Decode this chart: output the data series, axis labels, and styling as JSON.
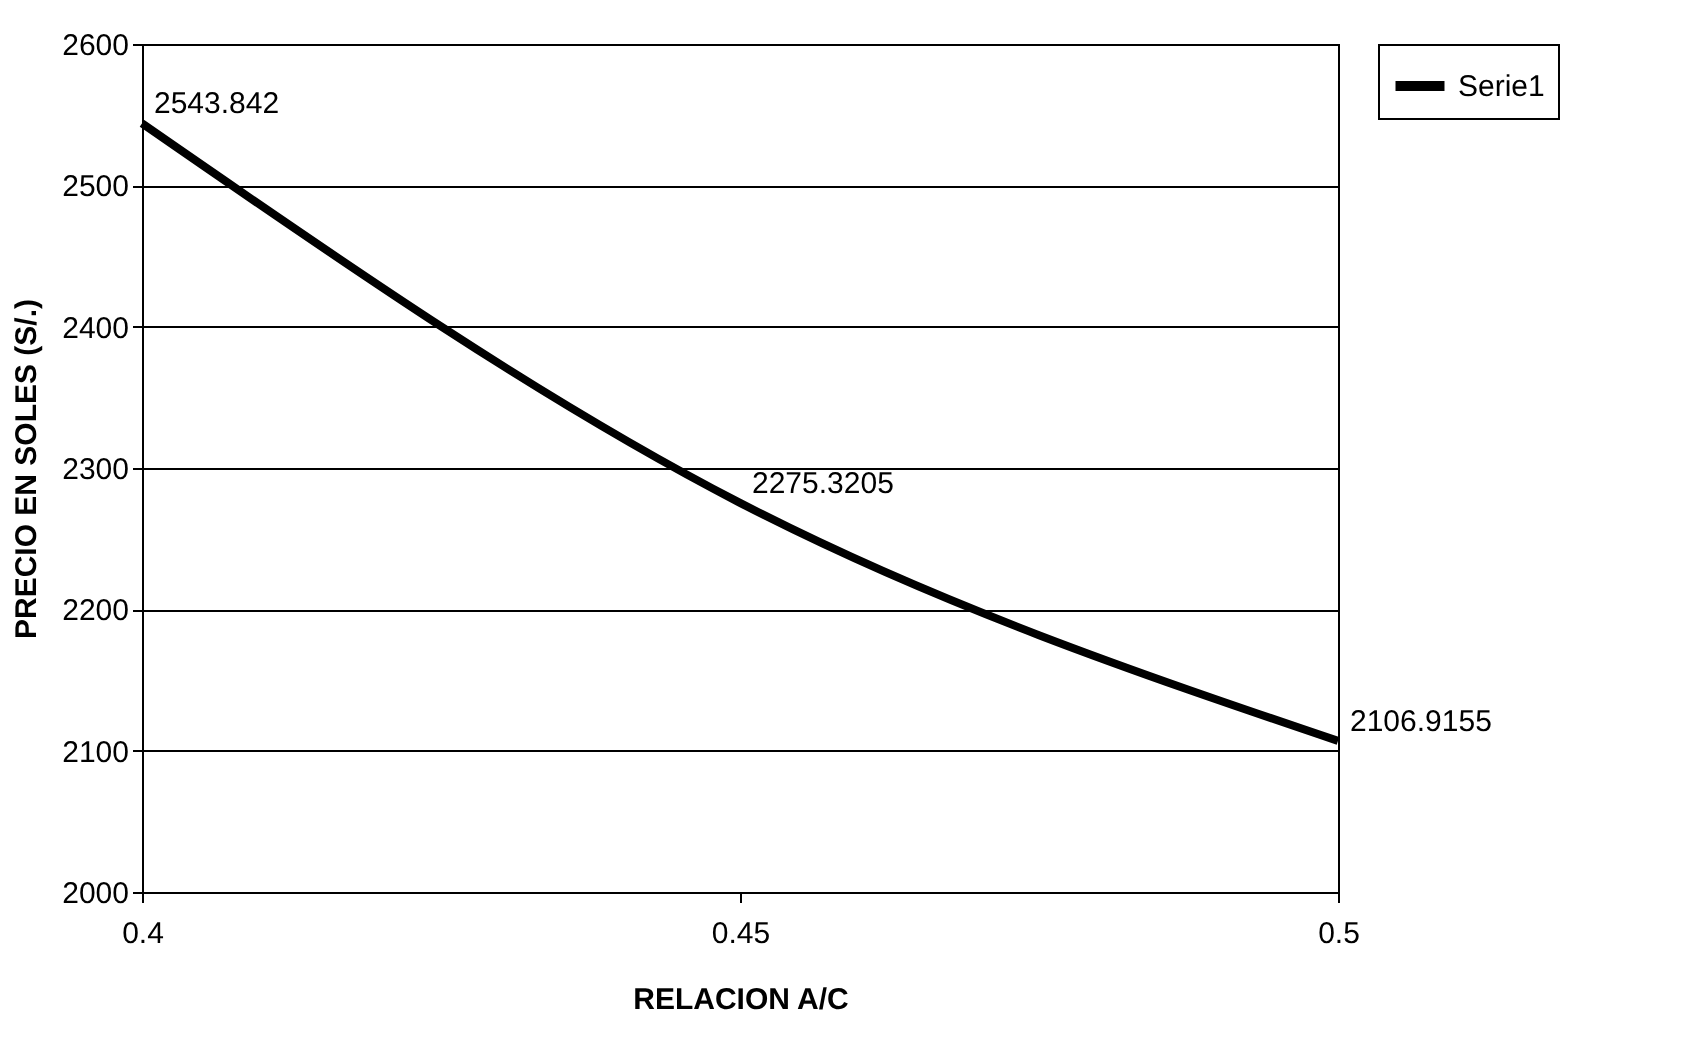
{
  "chart_data": {
    "type": "line",
    "xlabel": "RELACION  A/C",
    "ylabel": "PRECIO EN SOLES (S/.)",
    "x": [
      0.4,
      0.45,
      0.5
    ],
    "series": [
      {
        "name": "Serie1",
        "color": "#000000",
        "values": [
          2543.842,
          2275.3205,
          2106.9155
        ]
      }
    ],
    "xlim": [
      0.4,
      0.5
    ],
    "xticks": [
      0.4,
      0.45,
      0.5
    ],
    "ylim": [
      2000,
      2600
    ],
    "yticks": [
      2000,
      2100,
      2200,
      2300,
      2400,
      2500,
      2600
    ],
    "grid": "y",
    "legend": "right",
    "data_labels": true,
    "marker": "none",
    "line_style": "solid"
  }
}
